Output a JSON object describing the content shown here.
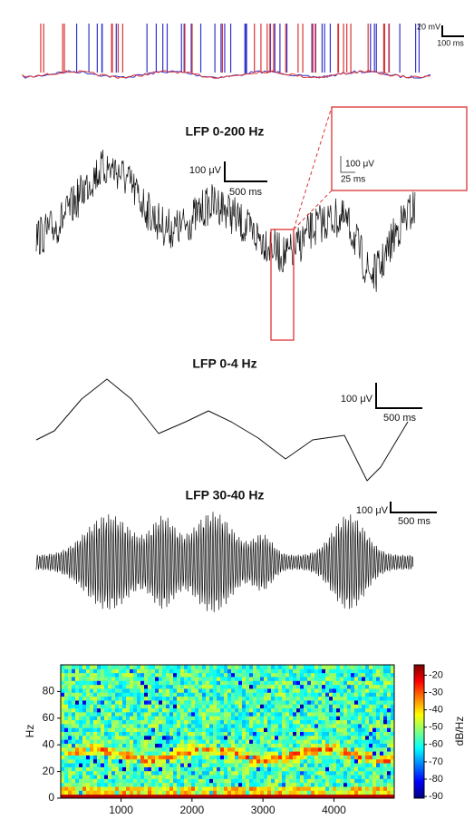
{
  "spikes": {
    "scale_y": "20 mV",
    "scale_x": "100 ms"
  },
  "lfp_raw": {
    "title": "LFP 0-200 Hz",
    "scale_y": "100 μV",
    "scale_x": "500 ms",
    "inset_scale_y": "100 μV",
    "inset_scale_x": "25 ms"
  },
  "lfp_delta": {
    "title": "LFP 0-4 Hz",
    "scale_y": "100 μV",
    "scale_x": "500 ms"
  },
  "lfp_gamma": {
    "title": "LFP 30-40 Hz",
    "scale_y": "100 μV",
    "scale_x": "500 ms"
  },
  "chart_data": {
    "type": "heatmap",
    "ylabel": "Hz",
    "colorbar_label": "dB/Hz",
    "xlim": [
      150,
      4850
    ],
    "xticks": [
      1000,
      2000,
      3000,
      4000
    ],
    "ylim": [
      0,
      100
    ],
    "yticks": [
      0,
      20,
      40,
      60,
      80
    ],
    "clim": [
      -91,
      -14
    ],
    "cticks": [
      -20,
      -30,
      -40,
      -50,
      -60,
      -70,
      -80,
      -90
    ]
  }
}
